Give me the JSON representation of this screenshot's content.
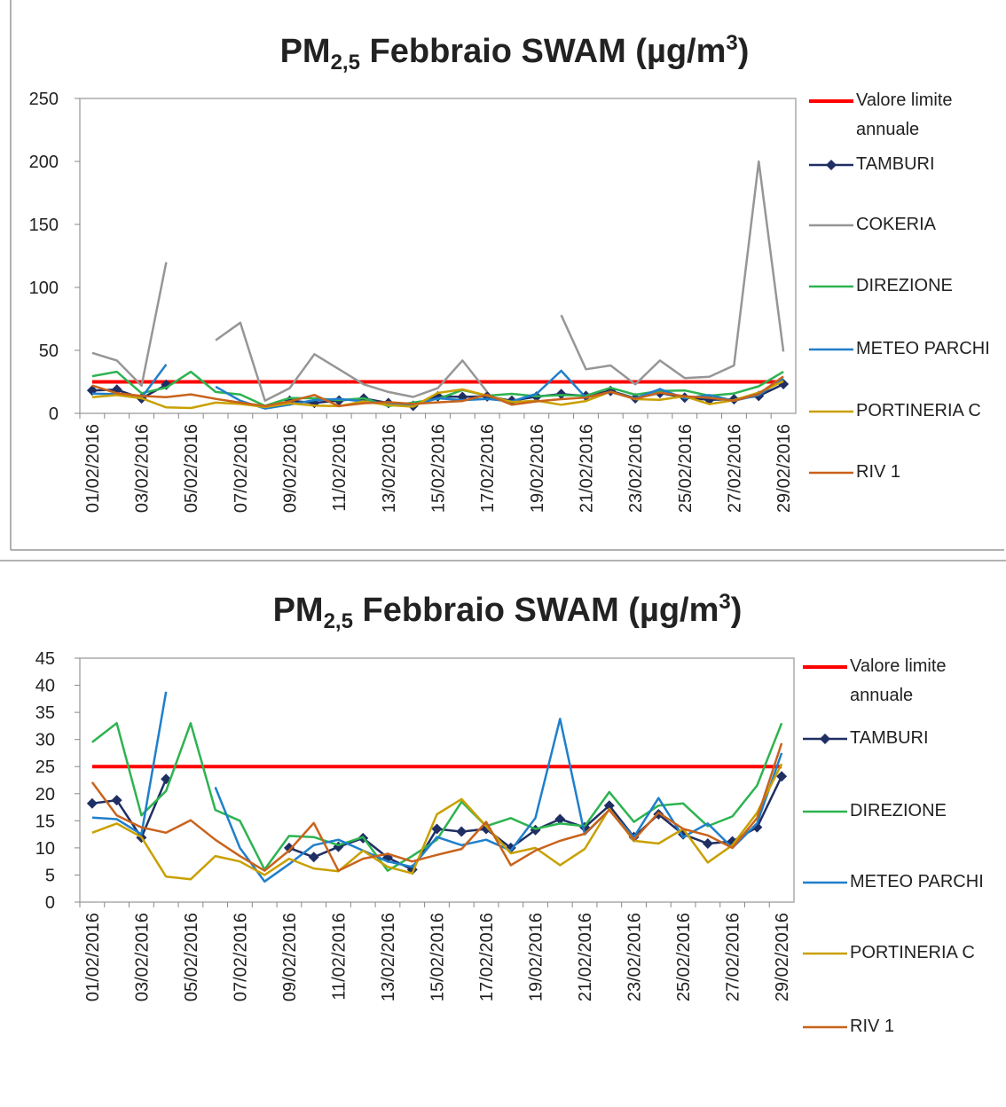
{
  "chart_data": [
    {
      "type": "line",
      "title": [
        "PM",
        "2,5",
        " Febbraio SWAM  (µg/m",
        "3",
        ")"
      ],
      "categories": [
        "01/02/2016",
        null,
        "03/02/2016",
        null,
        "05/02/2016",
        null,
        "07/02/2016",
        null,
        "09/02/2016",
        null,
        "11/02/2016",
        null,
        "13/02/2016",
        null,
        "15/02/2016",
        null,
        "17/02/2016",
        null,
        "19/02/2016",
        null,
        "21/02/2016",
        null,
        "23/02/2016",
        null,
        "25/02/2016",
        null,
        "27/02/2016",
        null,
        "29/02/2016"
      ],
      "ylim": [
        0,
        250
      ],
      "yticks": [
        0,
        50,
        100,
        150,
        200,
        250
      ],
      "legend": "right",
      "series": [
        {
          "name": "Valore limite annuale",
          "color": "#ff0000",
          "line_width": 4,
          "values": [
            25,
            25,
            25,
            25,
            25,
            25,
            25,
            25,
            25,
            25,
            25,
            25,
            25,
            25,
            25,
            25,
            25,
            25,
            25,
            25,
            25,
            25,
            25,
            25,
            25,
            25,
            25,
            25,
            25
          ]
        },
        {
          "name": "TAMBURI",
          "color": "#1f2f63",
          "marker": "diamond",
          "values": [
            18.2,
            18.8,
            11.9,
            22.7,
            null,
            null,
            null,
            null,
            10,
            8.3,
            10.2,
            11.8,
            8.2,
            6,
            13.5,
            13,
            13.5,
            10,
            13.3,
            15.3,
            13.8,
            17.8,
            12,
            16.2,
            12.5,
            10.8,
            11.2,
            13.8,
            23.2
          ]
        },
        {
          "name": "COKERIA",
          "color": "#969696",
          "values": [
            48,
            42,
            22,
            120,
            null,
            58,
            72,
            10,
            20,
            47,
            35,
            23,
            17,
            13,
            20,
            42,
            17,
            null,
            null,
            78,
            35,
            38,
            23,
            42,
            28,
            29,
            38,
            200,
            49
          ]
        },
        {
          "name": "DIREZIONE",
          "color": "#2db350",
          "values": [
            29.5,
            33,
            16,
            20.5,
            33,
            17,
            15,
            6,
            12.2,
            12,
            10.5,
            12,
            5.8,
            8.5,
            11.5,
            18.5,
            14,
            15.5,
            13.5,
            14.5,
            14,
            20.3,
            14.8,
            17.8,
            18.2,
            14,
            15.8,
            21.5,
            33
          ]
        },
        {
          "name": "METEO PARCHI",
          "color": "#1f7fcb",
          "values": [
            15.6,
            15.3,
            12.5,
            38.8,
            null,
            21.2,
            10,
            3.8,
            7,
            10.5,
            11.5,
            9.5,
            7.5,
            6.5,
            12,
            10.5,
            11.5,
            9.5,
            15.5,
            33.8,
            12.5,
            17,
            12,
            19.2,
            12,
            14.5,
            10,
            14.5,
            27.5
          ]
        },
        {
          "name": "PORTINERIA C",
          "color": "#c9a000",
          "values": [
            12.8,
            14.5,
            12,
            4.7,
            4.2,
            8.5,
            7.5,
            5,
            8,
            6.2,
            5.7,
            9.5,
            6.5,
            5.3,
            16.2,
            19,
            14,
            9,
            10,
            6.8,
            9.8,
            17.2,
            11.3,
            10.8,
            13.5,
            7.3,
            10.5,
            16.5,
            25.5
          ]
        },
        {
          "name": "RIV 1",
          "color": "#c8631c",
          "values": [
            22.1,
            16,
            13.8,
            12.8,
            15.1,
            11.5,
            8.5,
            5.8,
            9.5,
            14.6,
            5.8,
            8,
            8.9,
            7.5,
            8.7,
            9.8,
            14.8,
            6.8,
            9.5,
            11.3,
            12.6,
            17,
            11.5,
            16.5,
            13.5,
            12.3,
            10,
            15.5,
            29.3
          ]
        }
      ]
    },
    {
      "type": "line",
      "title": [
        "PM",
        "2,5",
        " Febbraio SWAM  (µg/m",
        "3",
        ")"
      ],
      "categories": [
        "01/02/2016",
        null,
        "03/02/2016",
        null,
        "05/02/2016",
        null,
        "07/02/2016",
        null,
        "09/02/2016",
        null,
        "11/02/2016",
        null,
        "13/02/2016",
        null,
        "15/02/2016",
        null,
        "17/02/2016",
        null,
        "19/02/2016",
        null,
        "21/02/2016",
        null,
        "23/02/2016",
        null,
        "25/02/2016",
        null,
        "27/02/2016",
        null,
        "29/02/2016"
      ],
      "ylim": [
        0,
        45
      ],
      "yticks": [
        0,
        5,
        10,
        15,
        20,
        25,
        30,
        35,
        40,
        45
      ],
      "legend": "right",
      "series": [
        {
          "name": "Valore limite annuale",
          "color": "#ff0000",
          "line_width": 4,
          "values": [
            25,
            25,
            25,
            25,
            25,
            25,
            25,
            25,
            25,
            25,
            25,
            25,
            25,
            25,
            25,
            25,
            25,
            25,
            25,
            25,
            25,
            25,
            25,
            25,
            25,
            25,
            25,
            25,
            25
          ]
        },
        {
          "name": "TAMBURI",
          "color": "#1f2f63",
          "marker": "diamond",
          "values": [
            18.2,
            18.8,
            11.9,
            22.7,
            null,
            null,
            null,
            null,
            10,
            8.3,
            10.2,
            11.8,
            8.2,
            6,
            13.5,
            13,
            13.5,
            10,
            13.3,
            15.3,
            13.8,
            17.8,
            12,
            16.2,
            12.5,
            10.8,
            11.2,
            13.8,
            23.2
          ]
        },
        {
          "name": "DIREZIONE",
          "color": "#2db350",
          "values": [
            29.5,
            33,
            16,
            20.5,
            33,
            17,
            15,
            6,
            12.2,
            12,
            10.5,
            12,
            5.8,
            8.5,
            11.5,
            18.5,
            14,
            15.5,
            13.5,
            14.5,
            14,
            20.3,
            14.8,
            17.8,
            18.2,
            14,
            15.8,
            21.5,
            33
          ]
        },
        {
          "name": "METEO PARCHI",
          "color": "#1f7fcb",
          "values": [
            15.6,
            15.3,
            12.5,
            38.8,
            null,
            21.2,
            10,
            3.8,
            7,
            10.5,
            11.5,
            9.5,
            7.5,
            6.5,
            12,
            10.5,
            11.5,
            9.5,
            15.5,
            33.8,
            12.5,
            17,
            12,
            19.2,
            12,
            14.5,
            10,
            14.5,
            27.5
          ]
        },
        {
          "name": "PORTINERIA C",
          "color": "#c9a000",
          "values": [
            12.8,
            14.5,
            12,
            4.7,
            4.2,
            8.5,
            7.5,
            5,
            8,
            6.2,
            5.7,
            9.5,
            6.5,
            5.3,
            16.2,
            19,
            14,
            9,
            10,
            6.8,
            9.8,
            17.2,
            11.3,
            10.8,
            13.5,
            7.3,
            10.5,
            16.5,
            25.5
          ]
        },
        {
          "name": "RIV 1",
          "color": "#c8631c",
          "values": [
            22.1,
            16,
            13.8,
            12.8,
            15.1,
            11.5,
            8.5,
            5.8,
            9.5,
            14.6,
            5.8,
            8,
            8.9,
            7.5,
            8.7,
            9.8,
            14.8,
            6.8,
            9.5,
            11.3,
            12.6,
            17,
            11.5,
            16.5,
            13.5,
            12.3,
            10,
            15.5,
            29.3
          ]
        }
      ]
    }
  ]
}
